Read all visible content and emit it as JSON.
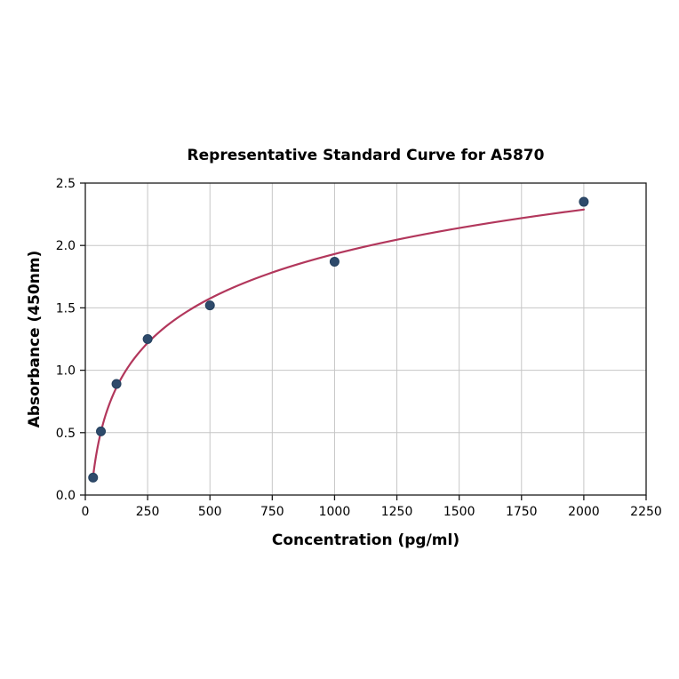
{
  "figure": {
    "background": "#ffffff"
  },
  "chart_data": {
    "type": "scatter",
    "title": "Representative Standard Curve for A5870",
    "xlabel": "Concentration (pg/ml)",
    "ylabel": "Absorbance (450nm)",
    "xlim": [
      0,
      2250
    ],
    "ylim": [
      0.0,
      2.5
    ],
    "xticks": [
      0,
      250,
      500,
      750,
      1000,
      1250,
      1500,
      1750,
      2000,
      2250
    ],
    "ytick_labels": [
      "0.0",
      "0.5",
      "1.0",
      "1.5",
      "2.0",
      "2.5"
    ],
    "yticks": [
      0.0,
      0.5,
      1.0,
      1.5,
      2.0,
      2.5
    ],
    "grid": true,
    "legend": "none",
    "points": [
      {
        "x": 31.25,
        "y": 0.14
      },
      {
        "x": 62.5,
        "y": 0.51
      },
      {
        "x": 125,
        "y": 0.89
      },
      {
        "x": 250,
        "y": 1.25
      },
      {
        "x": 500,
        "y": 1.52
      },
      {
        "x": 1000,
        "y": 1.87
      },
      {
        "x": 2000,
        "y": 2.35
      }
    ],
    "fit": {
      "type": "log",
      "description": "least-squares fit y = a*ln(x) + b drawn from first to last standard",
      "draw_range": [
        31.25,
        2000
      ]
    },
    "colors": {
      "curve": "#b2375c",
      "marker": "#2e4a6b",
      "marker_edge": "#24405e",
      "grid": "#c6c6c6",
      "axis": "#1a1a1a",
      "text": "#000000",
      "background": "#ffffff"
    }
  }
}
